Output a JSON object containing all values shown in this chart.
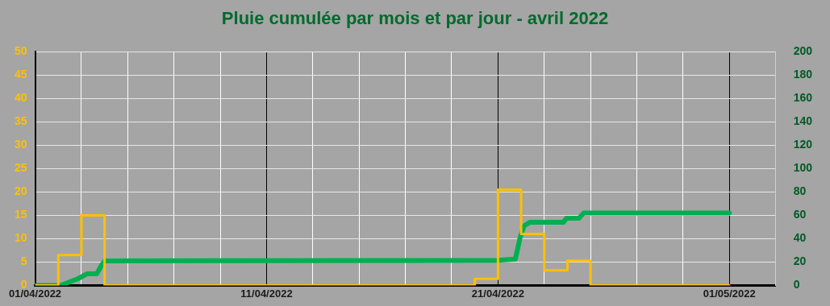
{
  "chart_data": {
    "type": "line",
    "title": "Pluie cumulée par mois et par jour - avril 2022",
    "xlim": [
      "2022-04-01",
      "2022-05-03"
    ],
    "xticks": [
      {
        "value": "2022-04-01",
        "label": "01/04/2022"
      },
      {
        "value": "2022-04-03",
        "label": null
      },
      {
        "value": "2022-04-05",
        "label": null
      },
      {
        "value": "2022-04-07",
        "label": null
      },
      {
        "value": "2022-04-09",
        "label": null
      },
      {
        "value": "2022-04-11",
        "label": "11/04/2022"
      },
      {
        "value": "2022-04-13",
        "label": null
      },
      {
        "value": "2022-04-15",
        "label": null
      },
      {
        "value": "2022-04-17",
        "label": null
      },
      {
        "value": "2022-04-19",
        "label": null
      },
      {
        "value": "2022-04-21",
        "label": "21/04/2022"
      },
      {
        "value": "2022-04-23",
        "label": null
      },
      {
        "value": "2022-04-25",
        "label": null
      },
      {
        "value": "2022-04-27",
        "label": null
      },
      {
        "value": "2022-04-29",
        "label": null
      },
      {
        "value": "2022-05-01",
        "label": "01/05/2022"
      },
      {
        "value": "2022-05-03",
        "label": null
      }
    ],
    "ylim": [
      0,
      50
    ],
    "yticks": [
      0,
      5,
      10,
      15,
      20,
      25,
      30,
      35,
      40,
      45,
      50
    ],
    "y2lim": [
      0,
      200
    ],
    "y2ticks": [
      0,
      20,
      40,
      60,
      80,
      100,
      120,
      140,
      160,
      180,
      200
    ],
    "grid": true,
    "legend": false,
    "marker": "none",
    "line_style": "solid",
    "series": [
      {
        "type": "step",
        "color": "#ffc000",
        "x": [
          "2022-04-01",
          "2022-04-02",
          "2022-04-03",
          "2022-04-04",
          "2022-04-20",
          "2022-04-21",
          "2022-04-22",
          "2022-04-23",
          "2022-04-24",
          "2022-04-25",
          "2022-05-01"
        ],
        "values": [
          0,
          6.5,
          15,
          0,
          1.4,
          20.5,
          11,
          3.2,
          5.3,
          0,
          0
        ]
      },
      {
        "axis": "y2",
        "color": "#00b050",
        "x": [
          "2022-04-01T00:00",
          "2022-04-02T03:00",
          "2022-04-02T20:00",
          "2022-04-03T01:00",
          "2022-04-03T06:00",
          "2022-04-03T16:00",
          "2022-04-03T20:00",
          "2022-04-04T00:00",
          "2022-04-21T00:00",
          "2022-04-21T18:00",
          "2022-04-21T23:00",
          "2022-04-22T03:00",
          "2022-04-22T09:00",
          "2022-04-23T20:00",
          "2022-04-23T23:00",
          "2022-04-24T12:00",
          "2022-04-24T17:00",
          "2022-05-01T00:00"
        ],
        "values": [
          0,
          0,
          5.6,
          7.7,
          10,
          10,
          16,
          21,
          21.5,
          22.5,
          41,
          51,
          54,
          54,
          57.5,
          57.5,
          62,
          62
        ]
      }
    ]
  }
}
